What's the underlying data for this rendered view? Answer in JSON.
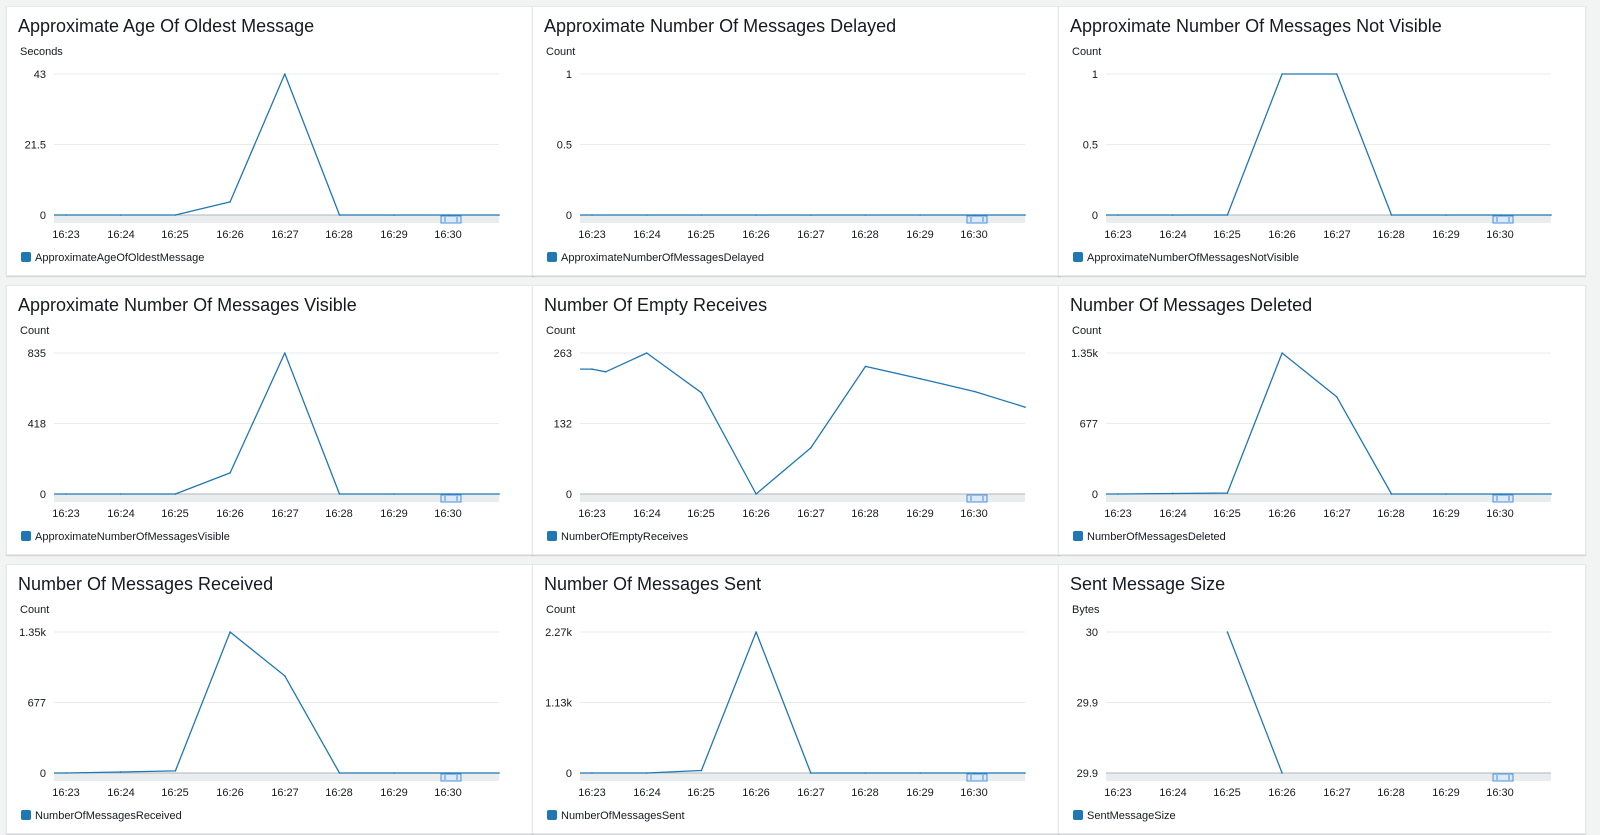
{
  "colors": {
    "series": "#1f77b4",
    "grid": "#e9ebed",
    "background": "#f2f3f3",
    "panel": "#ffffff"
  },
  "time_axis": [
    "16:23",
    "16:24",
    "16:25",
    "16:26",
    "16:27",
    "16:28",
    "16:29",
    "16:30"
  ],
  "panels": [
    {
      "title": "Approximate Age Of Oldest Message",
      "unit": "Seconds",
      "legend": "ApproximateAgeOfOldestMessage",
      "icon": "zoom-handle-icon",
      "chart_data": {
        "type": "line",
        "x": [
          "16:23",
          "16:24",
          "16:25",
          "16:26",
          "16:27",
          "16:28",
          "16:29",
          "16:30",
          "16:31"
        ],
        "series": [
          {
            "name": "ApproximateAgeOfOldestMessage",
            "values": [
              0,
              0,
              0,
              4,
              43,
              0,
              0,
              0,
              0
            ]
          }
        ],
        "ylim": [
          0,
          43
        ],
        "yticks": [
          "0",
          "21.5",
          "43"
        ],
        "ylabel": "Seconds"
      }
    },
    {
      "title": "Approximate Number Of Messages Delayed",
      "unit": "Count",
      "legend": "ApproximateNumberOfMessagesDelayed",
      "icon": "zoom-handle-icon",
      "chart_data": {
        "type": "line",
        "x": [
          "16:23",
          "16:24",
          "16:25",
          "16:26",
          "16:27",
          "16:28",
          "16:29",
          "16:30",
          "16:31"
        ],
        "series": [
          {
            "name": "ApproximateNumberOfMessagesDelayed",
            "values": [
              0,
              0,
              0,
              0,
              0,
              0,
              0,
              0,
              0
            ]
          }
        ],
        "ylim": [
          0,
          1
        ],
        "yticks": [
          "0",
          "0.5",
          "1"
        ],
        "ylabel": "Count"
      }
    },
    {
      "title": "Approximate Number Of Messages Not Visible",
      "unit": "Count",
      "legend": "ApproximateNumberOfMessagesNotVisible",
      "icon": "zoom-handle-icon",
      "chart_data": {
        "type": "line",
        "x": [
          "16:23",
          "16:24",
          "16:25",
          "16:26",
          "16:27",
          "16:28",
          "16:29",
          "16:30",
          "16:31"
        ],
        "series": [
          {
            "name": "ApproximateNumberOfMessagesNotVisible",
            "values": [
              0,
              0,
              0,
              1,
              1,
              0,
              0,
              0,
              0
            ]
          }
        ],
        "ylim": [
          0,
          1
        ],
        "yticks": [
          "0",
          "0.5",
          "1"
        ],
        "ylabel": "Count"
      }
    },
    {
      "title": "Approximate Number Of Messages Visible",
      "unit": "Count",
      "legend": "ApproximateNumberOfMessagesVisible",
      "icon": "zoom-handle-icon",
      "chart_data": {
        "type": "line",
        "x": [
          "16:23",
          "16:24",
          "16:25",
          "16:26",
          "16:27",
          "16:28",
          "16:29",
          "16:30",
          "16:31"
        ],
        "series": [
          {
            "name": "ApproximateNumberOfMessagesVisible",
            "values": [
              0,
              0,
              0,
              125,
              835,
              0,
              0,
              0,
              0
            ]
          }
        ],
        "ylim": [
          0,
          835
        ],
        "yticks": [
          "0",
          "418",
          "835"
        ],
        "ylabel": "Count"
      }
    },
    {
      "title": "Number Of Empty Receives",
      "unit": "Count",
      "legend": "NumberOfEmptyReceives",
      "icon": "zoom-handle-icon",
      "chart_data": {
        "type": "line",
        "x": [
          "16:23",
          "16:23:15",
          "16:24",
          "16:25",
          "16:26",
          "16:27",
          "16:28",
          "16:29",
          "16:30",
          "16:31"
        ],
        "series": [
          {
            "name": "NumberOfEmptyReceives",
            "values": [
              233,
              228,
              263,
              189,
              0,
              86,
              238,
              215,
              191,
              162
            ]
          }
        ],
        "ylim": [
          0,
          263
        ],
        "yticks": [
          "0",
          "132",
          "263"
        ],
        "ylabel": "Count"
      }
    },
    {
      "title": "Number Of Messages Deleted",
      "unit": "Count",
      "legend": "NumberOfMessagesDeleted",
      "icon": "zoom-handle-icon",
      "chart_data": {
        "type": "line",
        "x": [
          "16:23",
          "16:24",
          "16:25",
          "16:26",
          "16:27",
          "16:28",
          "16:29",
          "16:30",
          "16:31"
        ],
        "series": [
          {
            "name": "NumberOfMessagesDeleted",
            "values": [
              0,
              5,
              10,
              1350,
              930,
              0,
              0,
              0,
              0
            ]
          }
        ],
        "ylim": [
          0,
          1350
        ],
        "yticks": [
          "0",
          "677",
          "1.35k"
        ],
        "ylabel": "Count"
      }
    },
    {
      "title": "Number Of Messages Received",
      "unit": "Count",
      "legend": "NumberOfMessagesReceived",
      "icon": "zoom-handle-icon",
      "chart_data": {
        "type": "line",
        "x": [
          "16:23",
          "16:24",
          "16:25",
          "16:26",
          "16:27",
          "16:28",
          "16:29",
          "16:30",
          "16:31"
        ],
        "series": [
          {
            "name": "NumberOfMessagesReceived",
            "values": [
              0,
              10,
              20,
              1350,
              930,
              0,
              0,
              0,
              0
            ]
          }
        ],
        "ylim": [
          0,
          1350
        ],
        "yticks": [
          "0",
          "677",
          "1.35k"
        ],
        "ylabel": "Count"
      }
    },
    {
      "title": "Number Of Messages Sent",
      "unit": "Count",
      "legend": "NumberOfMessagesSent",
      "icon": "zoom-handle-icon",
      "chart_data": {
        "type": "line",
        "x": [
          "16:23",
          "16:24",
          "16:25",
          "16:26",
          "16:27",
          "16:28",
          "16:29",
          "16:30",
          "16:31"
        ],
        "series": [
          {
            "name": "NumberOfMessagesSent",
            "values": [
              0,
              0,
              40,
              2270,
              0,
              0,
              0,
              0,
              0
            ]
          }
        ],
        "ylim": [
          0,
          2270
        ],
        "yticks": [
          "0",
          "1.13k",
          "2.27k"
        ],
        "ylabel": "Count"
      }
    },
    {
      "title": "Sent Message Size",
      "unit": "Bytes",
      "legend": "SentMessageSize",
      "icon": "zoom-handle-icon",
      "chart_data": {
        "type": "line",
        "x": [
          "16:25",
          "16:26"
        ],
        "series": [
          {
            "name": "SentMessageSize",
            "values": [
              30,
              29.9
            ]
          }
        ],
        "ylim": [
          29.9,
          30
        ],
        "yticks": [
          "29.9",
          "29.9",
          "30"
        ],
        "ylabel": "Bytes"
      }
    }
  ]
}
